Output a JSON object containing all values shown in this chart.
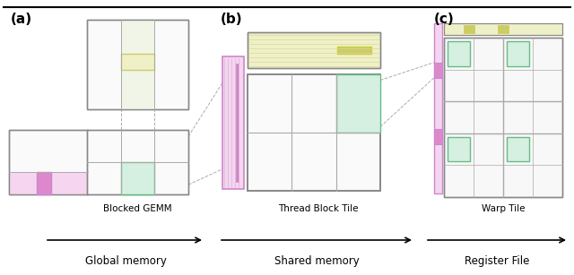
{
  "bg_color": "#ffffff",
  "label_a": "(a)",
  "label_b": "(b)",
  "label_c": "(c)",
  "text_blocked_gemm": "Blocked GEMM",
  "text_thread_block": "Thread Block Tile",
  "text_warp_tile": "Warp Tile",
  "text_global": "Global memory",
  "text_shared": "Shared memory",
  "text_register": "Register File",
  "color_pink_fill": "#f5d5ef",
  "color_pink_stroke": "#cc88cc",
  "color_pink_dark": "#dd88cc",
  "color_green_fill": "#d5f0e0",
  "color_green_stroke": "#66bb88",
  "color_yellow_fill": "#f0f0c8",
  "color_yellow_stroke": "#cccc66",
  "color_yellow_line": "#cccc44",
  "color_box": "#888888",
  "color_grid": "#aaaaaa",
  "color_col_fill": "#f0f5e8",
  "color_dash": "#aaaaaa"
}
